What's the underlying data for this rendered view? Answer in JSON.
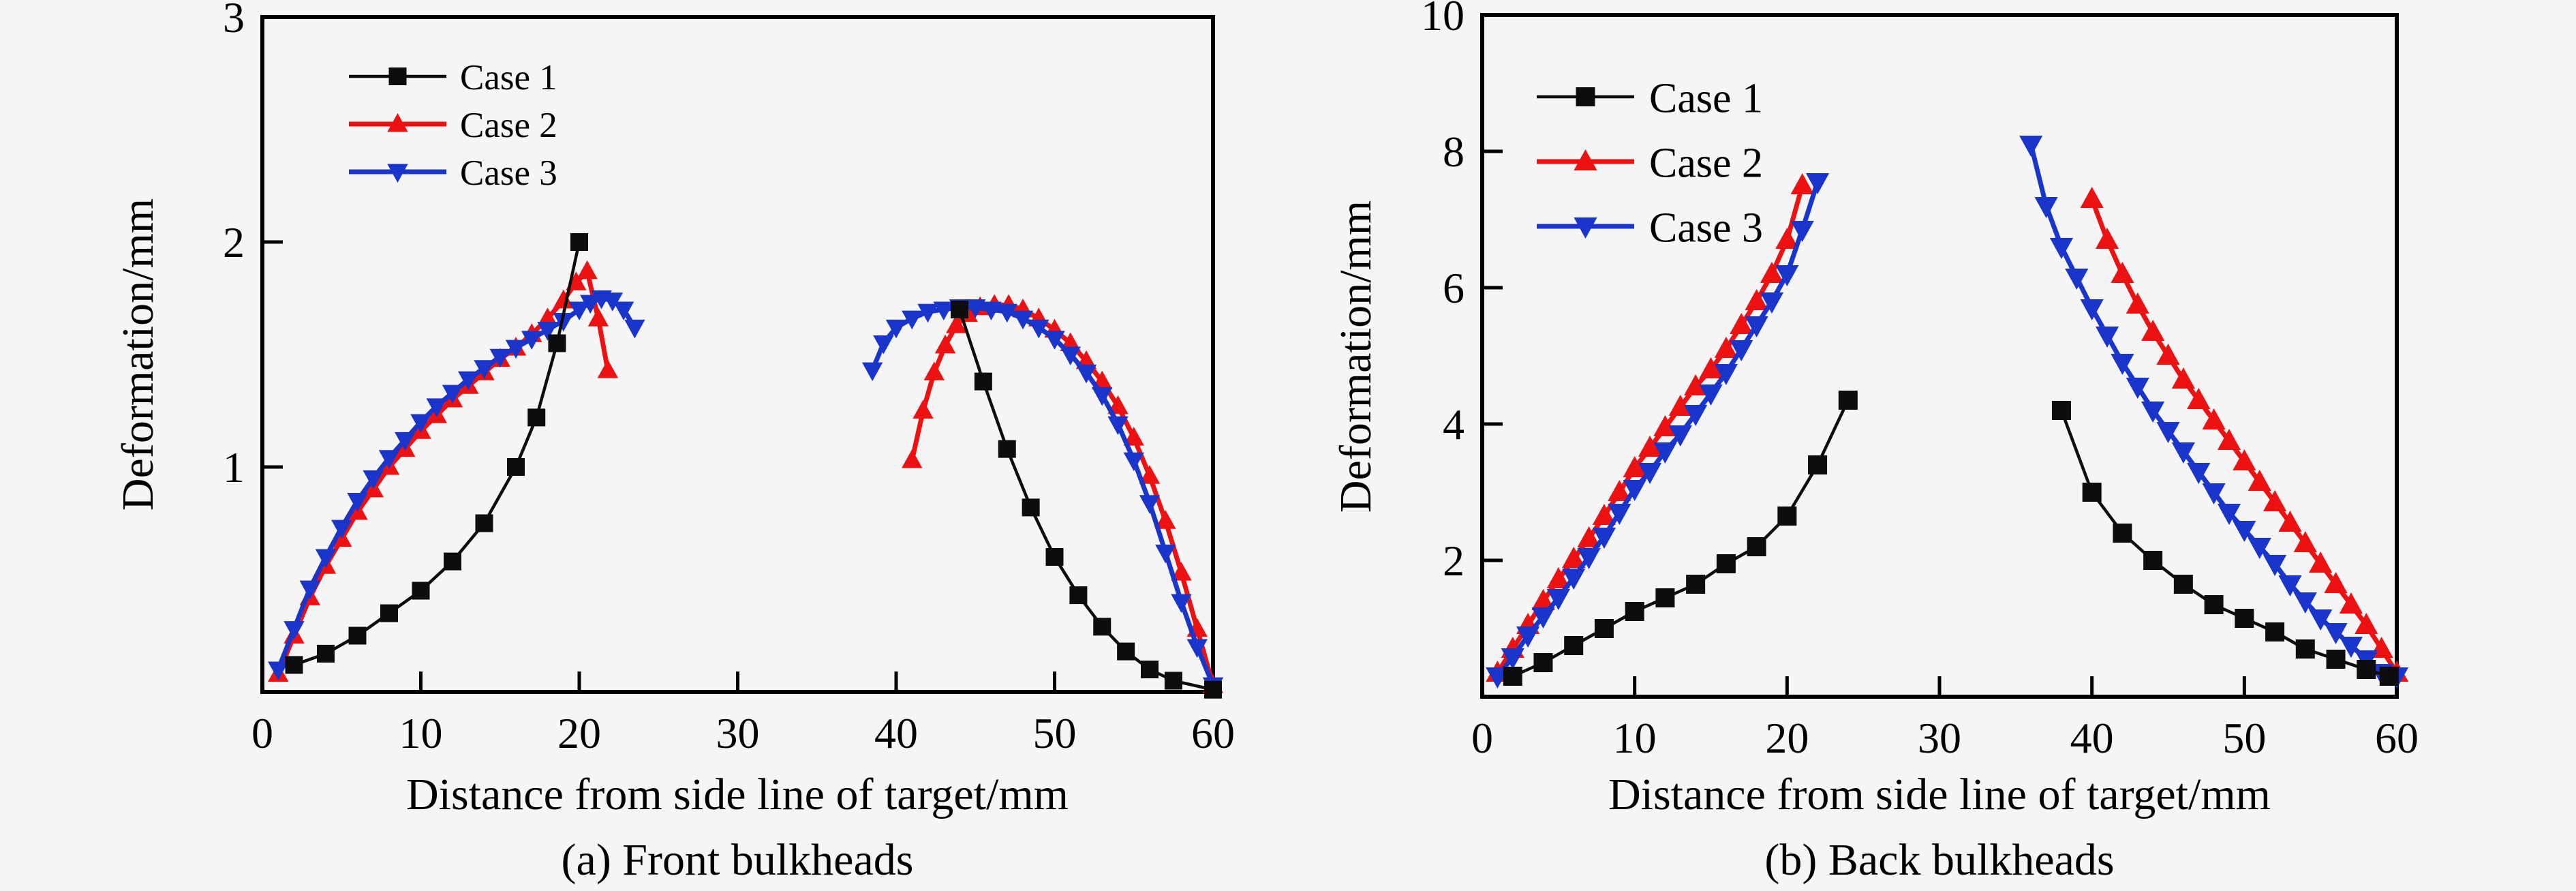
{
  "figure": {
    "background": "#f5f5f5",
    "axis_color": "#000000"
  },
  "chart_data": [
    {
      "type": "line",
      "caption": "(a) Front bulkheads",
      "xlabel": "Distance from side line of target/mm",
      "ylabel": "Deformation/mm",
      "xlim": [
        0,
        60
      ],
      "ylim": [
        0,
        3
      ],
      "xticks": [
        0,
        10,
        20,
        30,
        40,
        50,
        60
      ],
      "yticks": [
        1,
        2,
        3
      ],
      "grid": false,
      "legend_position": "top-left-inside",
      "series": [
        {
          "name": "Case 1",
          "color": "#0d0d0d",
          "marker": "square",
          "line_width": 4.5,
          "segments": [
            {
              "x": [
                2,
                4,
                6,
                8,
                10,
                12,
                14,
                16,
                17.3,
                18.6,
                20
              ],
              "y": [
                0.12,
                0.17,
                0.25,
                0.35,
                0.45,
                0.58,
                0.75,
                1.0,
                1.22,
                1.55,
                2.0
              ]
            },
            {
              "x": [
                44,
                45.5,
                47,
                48.5,
                50,
                51.5,
                53,
                54.5,
                56,
                57.5,
                60
              ],
              "y": [
                1.7,
                1.38,
                1.08,
                0.82,
                0.6,
                0.43,
                0.29,
                0.18,
                0.1,
                0.05,
                0.01
              ]
            }
          ]
        },
        {
          "name": "Case 2",
          "color": "#ee1111",
          "marker": "triangle-up",
          "line_width": 7,
          "segments": [
            {
              "x": [
                1,
                2,
                3,
                4,
                5,
                6,
                7,
                8,
                9,
                10,
                11,
                12,
                13,
                14,
                15,
                16,
                17,
                18,
                19,
                19.8,
                20.5,
                21.2,
                21.8
              ],
              "y": [
                0.08,
                0.25,
                0.42,
                0.56,
                0.68,
                0.8,
                0.9,
                1.0,
                1.08,
                1.16,
                1.23,
                1.3,
                1.36,
                1.42,
                1.48,
                1.53,
                1.59,
                1.66,
                1.74,
                1.82,
                1.87,
                1.66,
                1.43
              ]
            },
            {
              "x": [
                41,
                41.7,
                42.4,
                43.1,
                43.8,
                44.5,
                45.3,
                46.2,
                47.1,
                48,
                49,
                50,
                51,
                52,
                53,
                54,
                55,
                56,
                57,
                58,
                59,
                60
              ],
              "y": [
                1.03,
                1.25,
                1.42,
                1.54,
                1.63,
                1.68,
                1.71,
                1.72,
                1.72,
                1.7,
                1.66,
                1.61,
                1.55,
                1.47,
                1.38,
                1.27,
                1.13,
                0.96,
                0.76,
                0.53,
                0.28,
                0.03
              ]
            }
          ]
        },
        {
          "name": "Case 3",
          "color": "#1a35cc",
          "marker": "triangle-down",
          "line_width": 7,
          "segments": [
            {
              "x": [
                1,
                2,
                3,
                4,
                5,
                6,
                7,
                8,
                9,
                10,
                11,
                12,
                13,
                14,
                15,
                16,
                17,
                18,
                19,
                20,
                20.7,
                21.4,
                22.1,
                22.8,
                23.5
              ],
              "y": [
                0.1,
                0.28,
                0.46,
                0.6,
                0.73,
                0.85,
                0.95,
                1.04,
                1.12,
                1.2,
                1.27,
                1.33,
                1.39,
                1.44,
                1.49,
                1.53,
                1.57,
                1.61,
                1.65,
                1.7,
                1.73,
                1.75,
                1.74,
                1.7,
                1.62
              ]
            },
            {
              "x": [
                38.5,
                39.2,
                40,
                41,
                42,
                43,
                44,
                45,
                46,
                47,
                48,
                49,
                50,
                51,
                52,
                53,
                54,
                55,
                56,
                57,
                58,
                59,
                60
              ],
              "y": [
                1.43,
                1.55,
                1.62,
                1.66,
                1.69,
                1.7,
                1.71,
                1.71,
                1.7,
                1.69,
                1.66,
                1.62,
                1.57,
                1.5,
                1.42,
                1.32,
                1.19,
                1.03,
                0.84,
                0.62,
                0.4,
                0.2,
                0.03
              ]
            }
          ]
        }
      ]
    },
    {
      "type": "line",
      "caption": "(b) Back bulkheads",
      "xlabel": "Distance from side line of target/mm",
      "ylabel": "Deformation/mm",
      "xlim": [
        0,
        60
      ],
      "ylim": [
        0,
        10
      ],
      "xticks": [
        0,
        10,
        20,
        30,
        40,
        50,
        60
      ],
      "yticks": [
        2,
        4,
        6,
        8,
        10
      ],
      "grid": false,
      "legend_position": "top-left-inside",
      "series": [
        {
          "name": "Case 1",
          "color": "#0d0d0d",
          "marker": "square",
          "line_width": 4.5,
          "segments": [
            {
              "x": [
                2,
                4,
                6,
                8,
                10,
                12,
                14,
                16,
                18,
                20,
                22,
                24
              ],
              "y": [
                0.3,
                0.5,
                0.75,
                1.0,
                1.25,
                1.45,
                1.65,
                1.95,
                2.2,
                2.65,
                3.4,
                4.35
              ]
            },
            {
              "x": [
                38,
                40,
                42,
                44,
                46,
                48,
                50,
                52,
                54,
                56,
                58,
                59.5
              ],
              "y": [
                4.2,
                3.0,
                2.4,
                2.0,
                1.65,
                1.35,
                1.15,
                0.95,
                0.7,
                0.55,
                0.4,
                0.3
              ]
            }
          ]
        },
        {
          "name": "Case 2",
          "color": "#ee1111",
          "marker": "triangle-up",
          "line_width": 7,
          "segments": [
            {
              "x": [
                1,
                2,
                3,
                4,
                5,
                6,
                7,
                8,
                9,
                10,
                11,
                12,
                13,
                14,
                15,
                16,
                17,
                18,
                19,
                20,
                21
              ],
              "y": [
                0.35,
                0.7,
                1.05,
                1.4,
                1.72,
                2.02,
                2.32,
                2.65,
                3.0,
                3.35,
                3.65,
                3.95,
                4.25,
                4.55,
                4.8,
                5.1,
                5.45,
                5.8,
                6.2,
                6.7,
                7.5
              ]
            },
            {
              "x": [
                40,
                41,
                42,
                43,
                44,
                45,
                46,
                47,
                48,
                49,
                50,
                51,
                52,
                53,
                54,
                55,
                56,
                57,
                58,
                59,
                60
              ],
              "y": [
                7.3,
                6.7,
                6.2,
                5.75,
                5.35,
                5.0,
                4.65,
                4.35,
                4.05,
                3.75,
                3.45,
                3.15,
                2.85,
                2.55,
                2.25,
                1.95,
                1.65,
                1.35,
                1.05,
                0.7,
                0.35
              ]
            }
          ]
        },
        {
          "name": "Case 3",
          "color": "#1a35cc",
          "marker": "triangle-down",
          "line_width": 7,
          "segments": [
            {
              "x": [
                1,
                2,
                3,
                4,
                5,
                6,
                7,
                8,
                9,
                10,
                11,
                12,
                13,
                14,
                15,
                16,
                17,
                18,
                19,
                20,
                21,
                22
              ],
              "y": [
                0.3,
                0.58,
                0.9,
                1.18,
                1.45,
                1.75,
                2.05,
                2.35,
                2.7,
                3.05,
                3.3,
                3.6,
                3.85,
                4.15,
                4.45,
                4.75,
                5.1,
                5.45,
                5.8,
                6.2,
                6.85,
                7.55
              ]
            },
            {
              "x": [
                36,
                37,
                38,
                39,
                40,
                41,
                42,
                43,
                44,
                45,
                46,
                47,
                48,
                49,
                50,
                51,
                52,
                53,
                54,
                55,
                56,
                57,
                58,
                59,
                60
              ],
              "y": [
                8.1,
                7.2,
                6.6,
                6.15,
                5.7,
                5.3,
                4.9,
                4.55,
                4.2,
                3.9,
                3.6,
                3.3,
                3.0,
                2.7,
                2.45,
                2.2,
                1.95,
                1.65,
                1.4,
                1.15,
                0.95,
                0.75,
                0.55,
                0.35,
                0.3
              ]
            }
          ]
        }
      ]
    }
  ]
}
